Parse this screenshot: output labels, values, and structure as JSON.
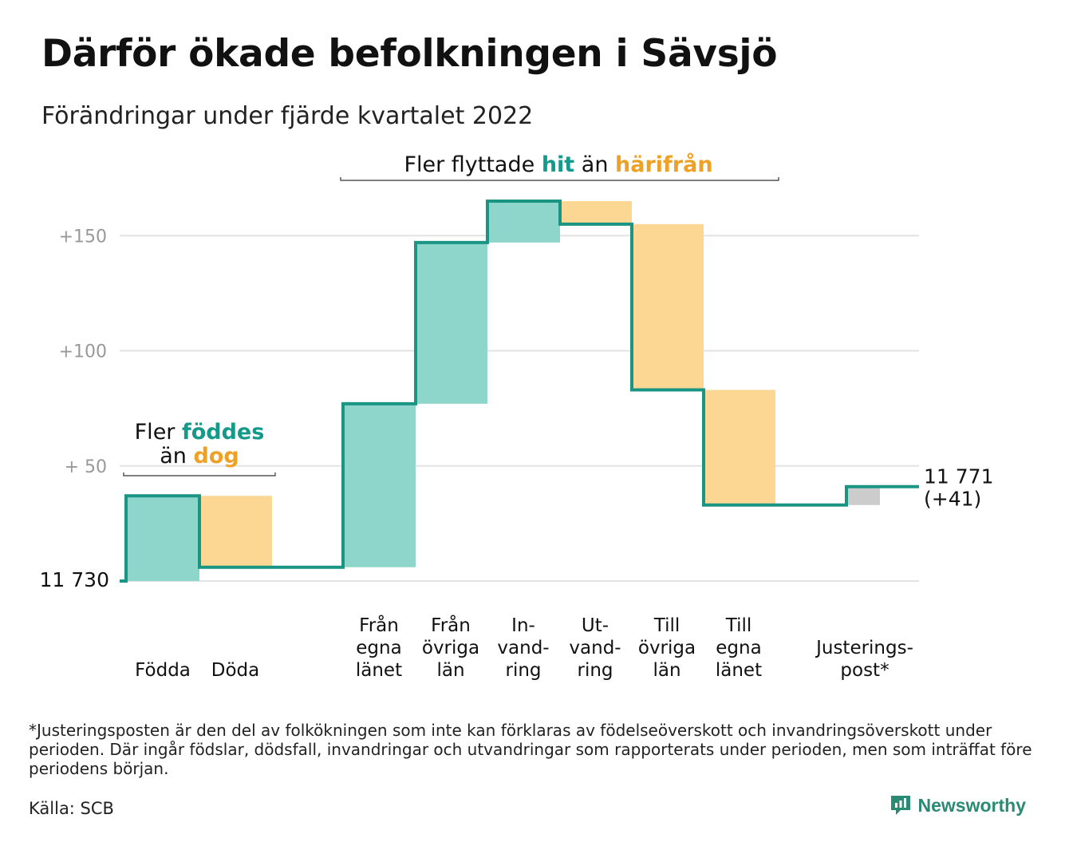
{
  "title": "Därför ökade befolkningen i Sävsjö",
  "subtitle": "Förändringar under fjärde kvartalet 2022",
  "footnote": "*Justeringsposten är den del av folkökningen som inte kan förklaras av födelseöverskott och invandringsöverskott under perioden. Där ingår födslar, dödsfall, invandringar och utvandringar som rapporterats under perioden, men som inträffat före periodens början.",
  "source": "Källa: SCB",
  "brand": "Newsworthy",
  "colors": {
    "increase": "#8ed6cb",
    "decrease": "#fbd793",
    "adjustment": "#cccccc",
    "line": "#1a9483",
    "grid": "#e3e3e3",
    "accent_teal": "#14998a",
    "accent_orange": "#efa125"
  },
  "chart_data": {
    "type": "waterfall",
    "start_value": 11730,
    "start_label": "11 730",
    "end_label": "11 771",
    "end_change_label": "(+41)",
    "ylim": [
      0,
      165
    ],
    "y_ticks": [
      {
        "value": 50,
        "label": "+ 50"
      },
      {
        "value": 100,
        "label": "+100"
      },
      {
        "value": 150,
        "label": "+150"
      }
    ],
    "steps": [
      {
        "label_lines": [
          "Födda"
        ],
        "value": 37,
        "kind": "increase"
      },
      {
        "label_lines": [
          "Döda"
        ],
        "value": -31,
        "kind": "decrease"
      },
      {
        "label_lines": [
          "Från",
          "egna",
          "länet"
        ],
        "value": 71,
        "kind": "increase"
      },
      {
        "label_lines": [
          "Från",
          "övriga",
          "län"
        ],
        "value": 70,
        "kind": "increase"
      },
      {
        "label_lines": [
          "In-",
          "vand-",
          "ring"
        ],
        "value": 18,
        "kind": "increase"
      },
      {
        "label_lines": [
          "Ut-",
          "vand-",
          "ring"
        ],
        "value": -10,
        "kind": "decrease"
      },
      {
        "label_lines": [
          "Till",
          "övriga",
          "län"
        ],
        "value": -72,
        "kind": "decrease"
      },
      {
        "label_lines": [
          "Till",
          "egna",
          "länet"
        ],
        "value": -50,
        "kind": "decrease"
      },
      {
        "label_lines": [
          "Justerings-",
          "post*"
        ],
        "value": 8,
        "kind": "adjustment"
      }
    ],
    "annotations": [
      {
        "parts": [
          {
            "text": "Fler ",
            "style": "normal"
          },
          {
            "text": "föddes",
            "style": "teal"
          },
          {
            "text": "än ",
            "style": "normal",
            "newline": true
          },
          {
            "text": "dog",
            "style": "orange"
          }
        ]
      },
      {
        "parts": [
          {
            "text": "Fler flyttade ",
            "style": "normal"
          },
          {
            "text": "hit",
            "style": "teal"
          },
          {
            "text": " än ",
            "style": "normal"
          },
          {
            "text": "härifrån",
            "style": "orange"
          }
        ]
      }
    ]
  }
}
